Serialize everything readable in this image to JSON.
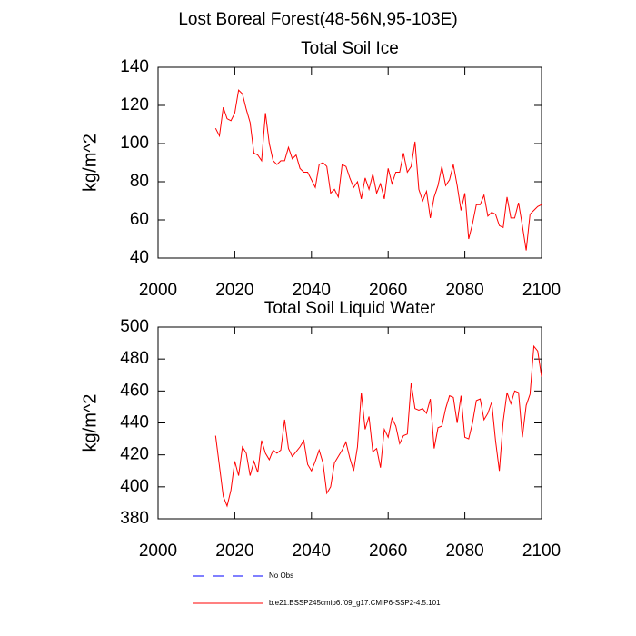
{
  "title": "Lost Boreal Forest(48-56N,95-103E)",
  "legend": [
    {
      "label": "No Obs",
      "color": "#0000ff",
      "dashed": true
    },
    {
      "label": "b.e21.BSSP245cmip6.f09_g17.CMIP6-SSP2-4.5.101",
      "color": "#ff0000",
      "dashed": false
    }
  ],
  "chart_data": [
    {
      "type": "line",
      "title": "Total Soil Ice",
      "ylabel": "kg/m^2",
      "x": [
        2015,
        2016,
        2017,
        2018,
        2019,
        2020,
        2021,
        2022,
        2023,
        2024,
        2025,
        2026,
        2027,
        2028,
        2029,
        2030,
        2031,
        2032,
        2033,
        2034,
        2035,
        2036,
        2037,
        2038,
        2039,
        2040,
        2041,
        2042,
        2043,
        2044,
        2045,
        2046,
        2047,
        2048,
        2049,
        2050,
        2051,
        2052,
        2053,
        2054,
        2055,
        2056,
        2057,
        2058,
        2059,
        2060,
        2061,
        2062,
        2063,
        2064,
        2065,
        2066,
        2067,
        2068,
        2069,
        2070,
        2071,
        2072,
        2073,
        2074,
        2075,
        2076,
        2077,
        2078,
        2079,
        2080,
        2081,
        2082,
        2083,
        2084,
        2085,
        2086,
        2087,
        2088,
        2089,
        2090,
        2091,
        2092,
        2093,
        2094,
        2095,
        2096,
        2097,
        2098,
        2099,
        2100
      ],
      "series": [
        {
          "color": "#ff0000",
          "values": [
            108,
            104,
            119,
            113,
            112,
            116,
            128,
            126,
            118,
            111,
            95,
            94,
            91,
            116,
            100,
            91,
            89,
            91,
            91,
            98,
            92,
            94,
            87,
            85,
            85,
            81,
            77,
            89,
            90,
            88,
            74,
            76,
            72,
            89,
            88,
            82,
            77,
            80,
            71,
            82,
            76,
            84,
            74,
            79,
            71,
            87,
            79,
            85,
            85,
            95,
            85,
            88,
            101,
            76,
            70,
            75,
            61,
            72,
            78,
            88,
            78,
            81,
            89,
            78,
            65,
            74,
            50,
            58,
            68,
            68,
            73,
            62,
            64,
            63,
            57,
            56,
            72,
            61,
            61,
            69,
            57,
            44,
            63,
            65,
            67,
            68
          ]
        }
      ],
      "xlim": [
        2000,
        2100
      ],
      "xticks": [
        2000,
        2020,
        2040,
        2060,
        2080,
        2100
      ],
      "ylim": [
        40,
        140
      ],
      "yticks": [
        40,
        60,
        80,
        100,
        120,
        140
      ]
    },
    {
      "type": "line",
      "title": "Total Soil Liquid Water",
      "ylabel": "kg/m^2",
      "x": [
        2015,
        2016,
        2017,
        2018,
        2019,
        2020,
        2021,
        2022,
        2023,
        2024,
        2025,
        2026,
        2027,
        2028,
        2029,
        2030,
        2031,
        2032,
        2033,
        2034,
        2035,
        2036,
        2037,
        2038,
        2039,
        2040,
        2041,
        2042,
        2043,
        2044,
        2045,
        2046,
        2047,
        2048,
        2049,
        2050,
        2051,
        2052,
        2053,
        2054,
        2055,
        2056,
        2057,
        2058,
        2059,
        2060,
        2061,
        2062,
        2063,
        2064,
        2065,
        2066,
        2067,
        2068,
        2069,
        2070,
        2071,
        2072,
        2073,
        2074,
        2075,
        2076,
        2077,
        2078,
        2079,
        2080,
        2081,
        2082,
        2083,
        2084,
        2085,
        2086,
        2087,
        2088,
        2089,
        2090,
        2091,
        2092,
        2093,
        2094,
        2095,
        2096,
        2097,
        2098,
        2099,
        2100
      ],
      "series": [
        {
          "color": "#ff0000",
          "values": [
            432,
            413,
            394,
            388,
            398,
            416,
            407,
            425,
            421,
            407,
            416,
            409,
            429,
            421,
            417,
            423,
            421,
            423,
            442,
            424,
            419,
            422,
            425,
            429,
            414,
            410,
            416,
            423,
            415,
            396,
            400,
            415,
            419,
            423,
            428,
            418,
            410,
            425,
            459,
            436,
            444,
            422,
            424,
            412,
            436,
            431,
            443,
            438,
            427,
            432,
            433,
            465,
            449,
            448,
            449,
            446,
            455,
            424,
            437,
            438,
            449,
            457,
            456,
            440,
            457,
            431,
            430,
            440,
            454,
            455,
            442,
            446,
            453,
            429,
            410,
            441,
            459,
            452,
            460,
            459,
            431,
            451,
            458,
            488,
            485,
            469
          ]
        }
      ],
      "xlim": [
        2000,
        2100
      ],
      "xticks": [
        2000,
        2020,
        2040,
        2060,
        2080,
        2100
      ],
      "ylim": [
        380,
        500
      ],
      "yticks": [
        380,
        400,
        420,
        440,
        460,
        480,
        500
      ]
    }
  ]
}
